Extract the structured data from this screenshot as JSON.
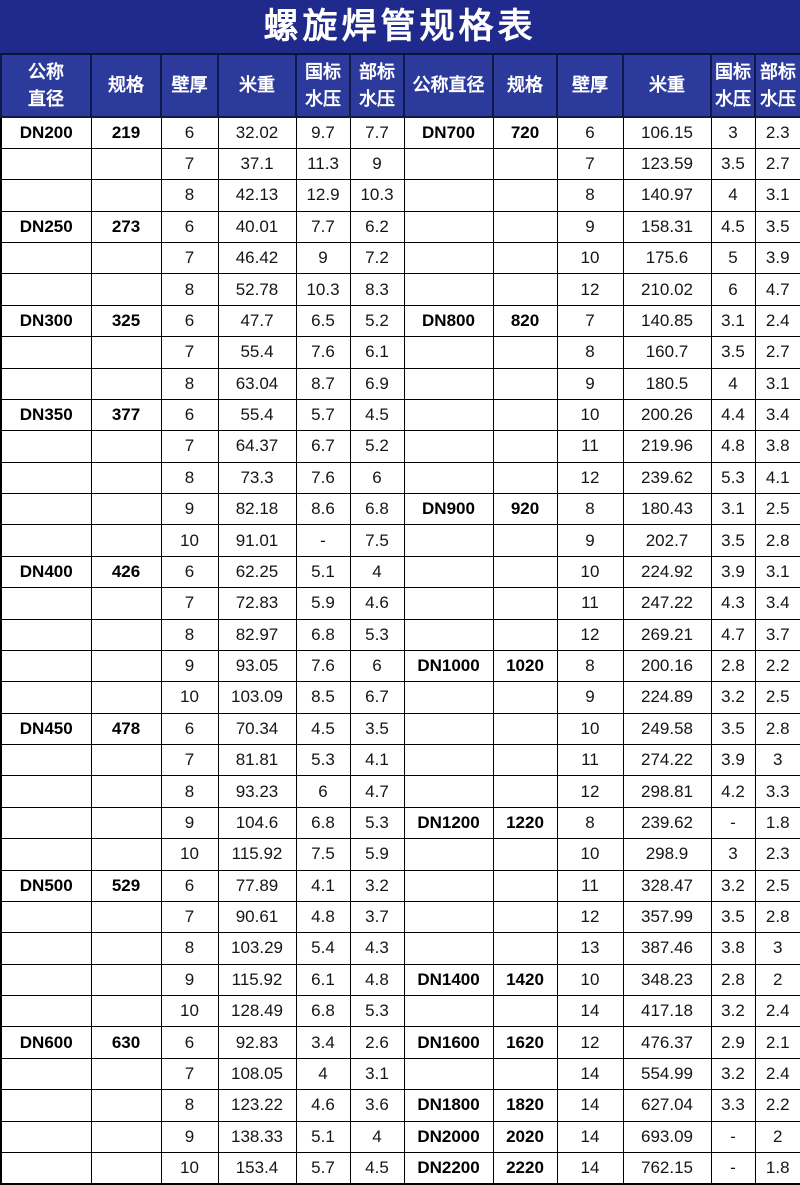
{
  "title": "螺旋焊管规格表",
  "colors": {
    "title_bg": "#1f2a8c",
    "header_bg": "#2c3a9c",
    "header_text": "#ffffff",
    "grid_line": "#000000",
    "body_text": "#151515"
  },
  "header_left": [
    "公称\n直径",
    "规格",
    "壁厚",
    "米重",
    "国标\n水压",
    "部标\n水压"
  ],
  "header_right": [
    "公称直径",
    "规格",
    "壁厚",
    "米重",
    "国标\n水压",
    "部标\n水压"
  ],
  "left_rows": [
    [
      "DN200",
      "219",
      "6",
      "32.02",
      "9.7",
      "7.7"
    ],
    [
      "",
      "",
      "7",
      "37.1",
      "11.3",
      "9"
    ],
    [
      "",
      "",
      "8",
      "42.13",
      "12.9",
      "10.3"
    ],
    [
      "DN250",
      "273",
      "6",
      "40.01",
      "7.7",
      "6.2"
    ],
    [
      "",
      "",
      "7",
      "46.42",
      "9",
      "7.2"
    ],
    [
      "",
      "",
      "8",
      "52.78",
      "10.3",
      "8.3"
    ],
    [
      "DN300",
      "325",
      "6",
      "47.7",
      "6.5",
      "5.2"
    ],
    [
      "",
      "",
      "7",
      "55.4",
      "7.6",
      "6.1"
    ],
    [
      "",
      "",
      "8",
      "63.04",
      "8.7",
      "6.9"
    ],
    [
      "DN350",
      "377",
      "6",
      "55.4",
      "5.7",
      "4.5"
    ],
    [
      "",
      "",
      "7",
      "64.37",
      "6.7",
      "5.2"
    ],
    [
      "",
      "",
      "8",
      "73.3",
      "7.6",
      "6"
    ],
    [
      "",
      "",
      "9",
      "82.18",
      "8.6",
      "6.8"
    ],
    [
      "",
      "",
      "10",
      "91.01",
      "-",
      "7.5"
    ],
    [
      "DN400",
      "426",
      "6",
      "62.25",
      "5.1",
      "4"
    ],
    [
      "",
      "",
      "7",
      "72.83",
      "5.9",
      "4.6"
    ],
    [
      "",
      "",
      "8",
      "82.97",
      "6.8",
      "5.3"
    ],
    [
      "",
      "",
      "9",
      "93.05",
      "7.6",
      "6"
    ],
    [
      "",
      "",
      "10",
      "103.09",
      "8.5",
      "6.7"
    ],
    [
      "DN450",
      "478",
      "6",
      "70.34",
      "4.5",
      "3.5"
    ],
    [
      "",
      "",
      "7",
      "81.81",
      "5.3",
      "4.1"
    ],
    [
      "",
      "",
      "8",
      "93.23",
      "6",
      "4.7"
    ],
    [
      "",
      "",
      "9",
      "104.6",
      "6.8",
      "5.3"
    ],
    [
      "",
      "",
      "10",
      "115.92",
      "7.5",
      "5.9"
    ],
    [
      "DN500",
      "529",
      "6",
      "77.89",
      "4.1",
      "3.2"
    ],
    [
      "",
      "",
      "7",
      "90.61",
      "4.8",
      "3.7"
    ],
    [
      "",
      "",
      "8",
      "103.29",
      "5.4",
      "4.3"
    ],
    [
      "",
      "",
      "9",
      "115.92",
      "6.1",
      "4.8"
    ],
    [
      "",
      "",
      "10",
      "128.49",
      "6.8",
      "5.3"
    ],
    [
      "DN600",
      "630",
      "6",
      "92.83",
      "3.4",
      "2.6"
    ],
    [
      "",
      "",
      "7",
      "108.05",
      "4",
      "3.1"
    ],
    [
      "",
      "",
      "8",
      "123.22",
      "4.6",
      "3.6"
    ],
    [
      "",
      "",
      "9",
      "138.33",
      "5.1",
      "4"
    ],
    [
      "",
      "",
      "10",
      "153.4",
      "5.7",
      "4.5"
    ]
  ],
  "right_rows": [
    [
      "DN700",
      "720",
      "6",
      "106.15",
      "3",
      "2.3"
    ],
    [
      "",
      "",
      "7",
      "123.59",
      "3.5",
      "2.7"
    ],
    [
      "",
      "",
      "8",
      "140.97",
      "4",
      "3.1"
    ],
    [
      "",
      "",
      "9",
      "158.31",
      "4.5",
      "3.5"
    ],
    [
      "",
      "",
      "10",
      "175.6",
      "5",
      "3.9"
    ],
    [
      "",
      "",
      "12",
      "210.02",
      "6",
      "4.7"
    ],
    [
      "DN800",
      "820",
      "7",
      "140.85",
      "3.1",
      "2.4"
    ],
    [
      "",
      "",
      "8",
      "160.7",
      "3.5",
      "2.7"
    ],
    [
      "",
      "",
      "9",
      "180.5",
      "4",
      "3.1"
    ],
    [
      "",
      "",
      "10",
      "200.26",
      "4.4",
      "3.4"
    ],
    [
      "",
      "",
      "11",
      "219.96",
      "4.8",
      "3.8"
    ],
    [
      "",
      "",
      "12",
      "239.62",
      "5.3",
      "4.1"
    ],
    [
      "DN900",
      "920",
      "8",
      "180.43",
      "3.1",
      "2.5"
    ],
    [
      "",
      "",
      "9",
      "202.7",
      "3.5",
      "2.8"
    ],
    [
      "",
      "",
      "10",
      "224.92",
      "3.9",
      "3.1"
    ],
    [
      "",
      "",
      "11",
      "247.22",
      "4.3",
      "3.4"
    ],
    [
      "",
      "",
      "12",
      "269.21",
      "4.7",
      "3.7"
    ],
    [
      "DN1000",
      "1020",
      "8",
      "200.16",
      "2.8",
      "2.2"
    ],
    [
      "",
      "",
      "9",
      "224.89",
      "3.2",
      "2.5"
    ],
    [
      "",
      "",
      "10",
      "249.58",
      "3.5",
      "2.8"
    ],
    [
      "",
      "",
      "11",
      "274.22",
      "3.9",
      "3"
    ],
    [
      "",
      "",
      "12",
      "298.81",
      "4.2",
      "3.3"
    ],
    [
      "DN1200",
      "1220",
      "8",
      "239.62",
      "-",
      "1.8"
    ],
    [
      "",
      "",
      "10",
      "298.9",
      "3",
      "2.3"
    ],
    [
      "",
      "",
      "11",
      "328.47",
      "3.2",
      "2.5"
    ],
    [
      "",
      "",
      "12",
      "357.99",
      "3.5",
      "2.8"
    ],
    [
      "",
      "",
      "13",
      "387.46",
      "3.8",
      "3"
    ],
    [
      "DN1400",
      "1420",
      "10",
      "348.23",
      "2.8",
      "2"
    ],
    [
      "",
      "",
      "14",
      "417.18",
      "3.2",
      "2.4"
    ],
    [
      "DN1600",
      "1620",
      "12",
      "476.37",
      "2.9",
      "2.1"
    ],
    [
      "",
      "",
      "14",
      "554.99",
      "3.2",
      "2.4"
    ],
    [
      "DN1800",
      "1820",
      "14",
      "627.04",
      "3.3",
      "2.2"
    ],
    [
      "DN2000",
      "2020",
      "14",
      "693.09",
      "-",
      "2"
    ],
    [
      "DN2200",
      "2220",
      "14",
      "762.15",
      "-",
      "1.8"
    ]
  ]
}
